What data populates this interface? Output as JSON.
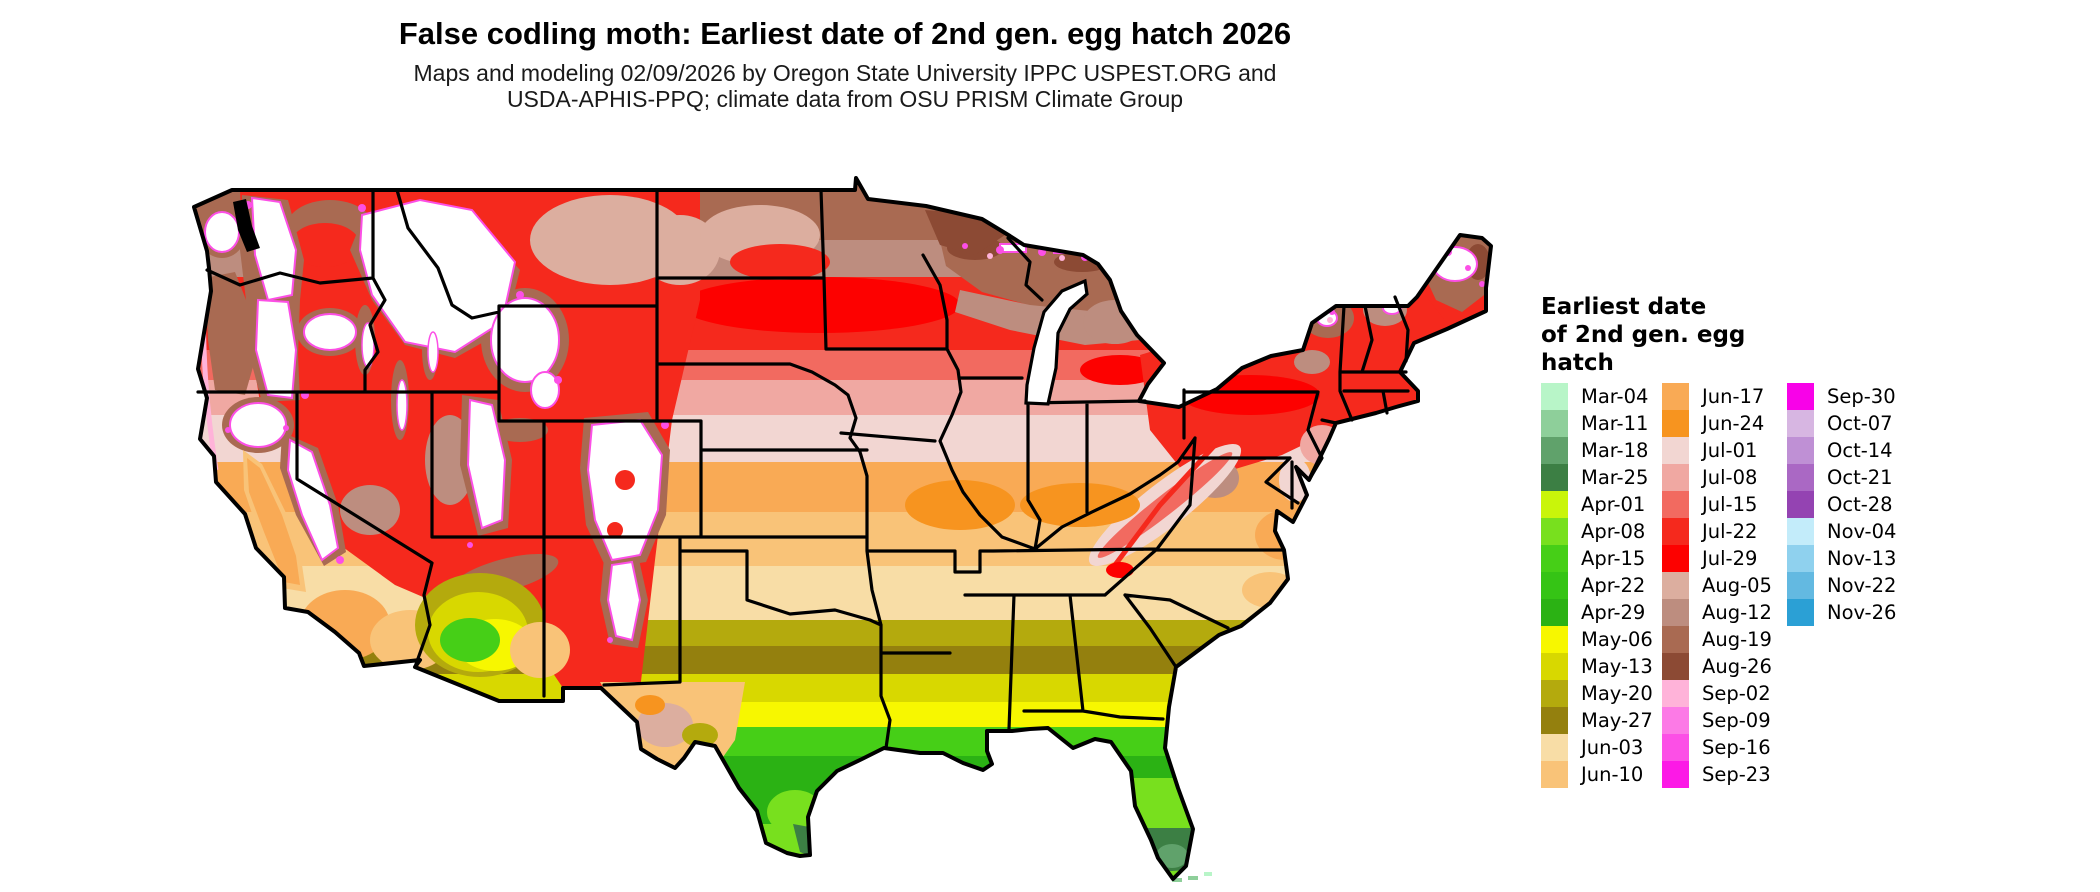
{
  "title": "False codling moth: Earliest date of 2nd gen. egg hatch 2026",
  "subtitle": {
    "line1": "Maps and modeling 02/09/2026 by Oregon State University IPPC USPEST.ORG and",
    "line2": "USDA-APHIS-PPQ; climate data from OSU PRISM Climate Group"
  },
  "legend": {
    "title_line1": "Earliest date",
    "title_line2": "of 2nd gen. egg",
    "title_line3": "hatch",
    "columns": [
      [
        {
          "label": "Mar-04",
          "color": "#b8f5c8"
        },
        {
          "label": "Mar-11",
          "color": "#8ecf9a"
        },
        {
          "label": "Mar-18",
          "color": "#60a26b"
        },
        {
          "label": "Mar-25",
          "color": "#3c7f44"
        },
        {
          "label": "Apr-01",
          "color": "#c9f50a"
        },
        {
          "label": "Apr-08",
          "color": "#78e01e"
        },
        {
          "label": "Apr-15",
          "color": "#46cf17"
        },
        {
          "label": "Apr-22",
          "color": "#35c415"
        },
        {
          "label": "Apr-29",
          "color": "#2bb214"
        },
        {
          "label": "May-06",
          "color": "#f7f700"
        },
        {
          "label": "May-13",
          "color": "#d8d800"
        },
        {
          "label": "May-20",
          "color": "#b4aa0d"
        },
        {
          "label": "May-27",
          "color": "#94800e"
        },
        {
          "label": "Jun-03",
          "color": "#f8dda6"
        },
        {
          "label": "Jun-10",
          "color": "#f9c378"
        }
      ],
      [
        {
          "label": "Jun-17",
          "color": "#f9aa55"
        },
        {
          "label": "Jun-24",
          "color": "#f7941f"
        },
        {
          "label": "Jul-01",
          "color": "#f2d6d2"
        },
        {
          "label": "Jul-08",
          "color": "#f0a8a2"
        },
        {
          "label": "Jul-15",
          "color": "#f26a60"
        },
        {
          "label": "Jul-22",
          "color": "#f5291d"
        },
        {
          "label": "Jul-29",
          "color": "#fd0100"
        },
        {
          "label": "Aug-05",
          "color": "#dcae9f"
        },
        {
          "label": "Aug-12",
          "color": "#bd8d7f"
        },
        {
          "label": "Aug-19",
          "color": "#a96a52"
        },
        {
          "label": "Aug-26",
          "color": "#8c4a34"
        },
        {
          "label": "Sep-02",
          "color": "#ffb3d9"
        },
        {
          "label": "Sep-09",
          "color": "#fc7ae6"
        },
        {
          "label": "Sep-16",
          "color": "#fc4fe6"
        },
        {
          "label": "Sep-23",
          "color": "#fc19e6"
        }
      ],
      [
        {
          "label": "Sep-30",
          "color": "#f802e8"
        },
        {
          "label": "Oct-07",
          "color": "#d7b6e2"
        },
        {
          "label": "Oct-14",
          "color": "#bf90d5"
        },
        {
          "label": "Oct-21",
          "color": "#aa68c4"
        },
        {
          "label": "Oct-28",
          "color": "#9443b2"
        },
        {
          "label": "Nov-04",
          "color": "#c3ecfa"
        },
        {
          "label": "Nov-13",
          "color": "#8fd1ee"
        },
        {
          "label": "Nov-22",
          "color": "#63b9e1"
        },
        {
          "label": "Nov-26",
          "color": "#2ba0d5"
        }
      ]
    ]
  },
  "map": {
    "type": "choropleth",
    "region": "Continental United States",
    "variable": "Earliest date of 2nd generation egg hatch",
    "no_data_color": "#ffffff",
    "border_color": "#000000",
    "background_color": "#ffffff"
  }
}
